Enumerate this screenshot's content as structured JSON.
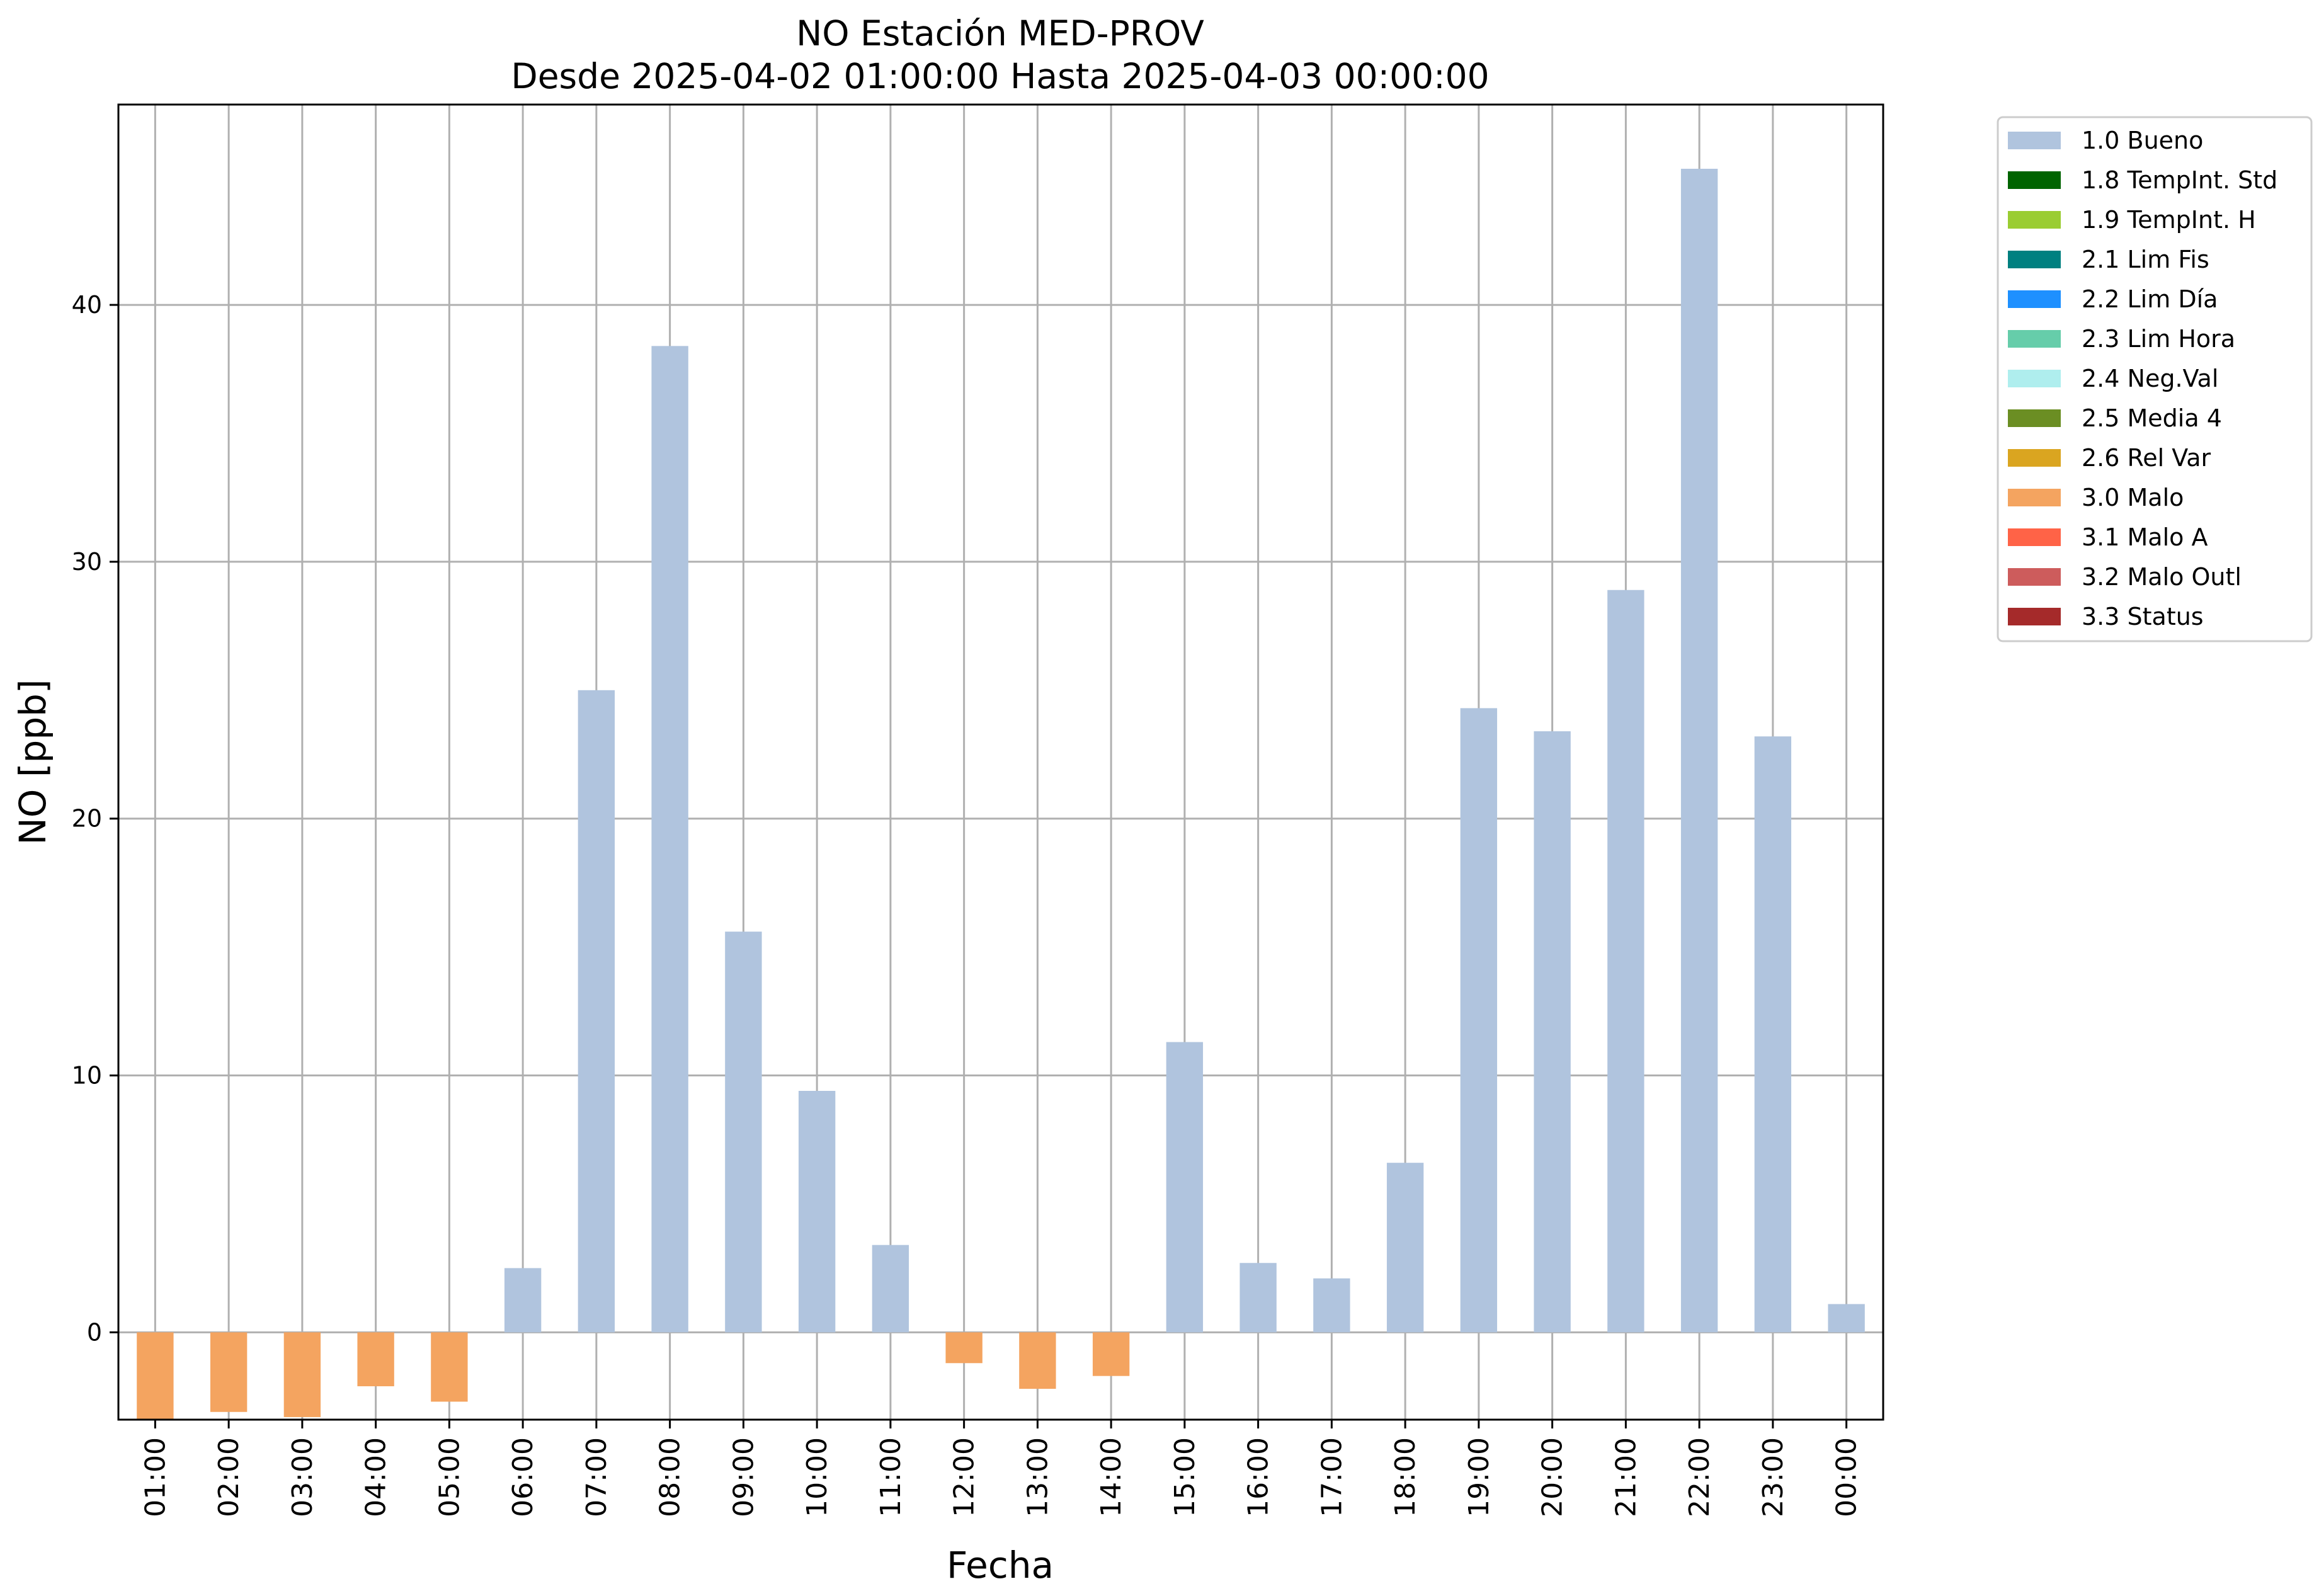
{
  "chart_data": {
    "type": "bar",
    "title": "NO Estación MED-PROV",
    "subtitle": "Desde 2025-04-02 01:00:00 Hasta 2025-04-03 00:00:00",
    "xlabel": "Fecha",
    "ylabel": "NO [ppb]",
    "ylim": [
      -3.4,
      47.8
    ],
    "yticks": [
      0,
      10,
      20,
      30,
      40
    ],
    "grid": true,
    "legend_position": "outside-top-right",
    "categories": [
      "01:00",
      "02:00",
      "03:00",
      "04:00",
      "05:00",
      "06:00",
      "07:00",
      "08:00",
      "09:00",
      "10:00",
      "11:00",
      "12:00",
      "13:00",
      "14:00",
      "15:00",
      "16:00",
      "17:00",
      "18:00",
      "19:00",
      "20:00",
      "21:00",
      "22:00",
      "23:00",
      "00:00"
    ],
    "values": [
      -3.4,
      -3.1,
      -3.3,
      -2.1,
      -2.7,
      2.5,
      25.0,
      38.4,
      15.6,
      9.4,
      3.4,
      -1.2,
      -2.2,
      -1.7,
      11.3,
      2.7,
      2.1,
      6.6,
      24.3,
      23.4,
      28.9,
      45.3,
      23.2,
      1.1
    ],
    "flags": [
      "3.0 Malo",
      "3.0 Malo",
      "3.0 Malo",
      "3.0 Malo",
      "3.0 Malo",
      "1.0 Bueno",
      "1.0 Bueno",
      "1.0 Bueno",
      "1.0 Bueno",
      "1.0 Bueno",
      "1.0 Bueno",
      "3.0 Malo",
      "3.0 Malo",
      "3.0 Malo",
      "1.0 Bueno",
      "1.0 Bueno",
      "1.0 Bueno",
      "1.0 Bueno",
      "1.0 Bueno",
      "1.0 Bueno",
      "1.0 Bueno",
      "1.0 Bueno",
      "1.0 Bueno",
      "1.0 Bueno"
    ],
    "legend": [
      {
        "label": "1.0 Bueno",
        "color": "#b0c4de"
      },
      {
        "label": "1.8 TempInt. Std",
        "color": "#006400"
      },
      {
        "label": "1.9 TempInt. H",
        "color": "#9acd32"
      },
      {
        "label": "2.1 Lim Fis",
        "color": "#008080"
      },
      {
        "label": "2.2 Lim Día",
        "color": "#1e90ff"
      },
      {
        "label": "2.3 Lim Hora",
        "color": "#66cdaa"
      },
      {
        "label": "2.4 Neg.Val",
        "color": "#afeeee"
      },
      {
        "label": "2.5 Media 4",
        "color": "#6b8e23"
      },
      {
        "label": "2.6 Rel Var",
        "color": "#daa520"
      },
      {
        "label": "3.0 Malo",
        "color": "#f4a460"
      },
      {
        "label": "3.1 Malo A",
        "color": "#ff6347"
      },
      {
        "label": "3.2 Malo Outl",
        "color": "#cd5c5c"
      },
      {
        "label": "3.3 Status",
        "color": "#a52a2a"
      }
    ]
  }
}
